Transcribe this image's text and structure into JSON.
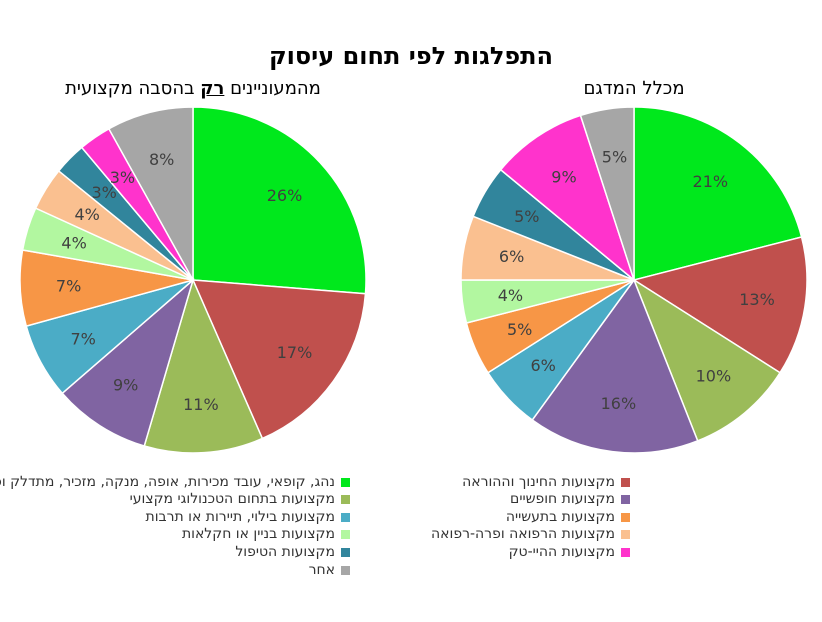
{
  "title": "התפלגות לפי תחום עיסוק",
  "chart_data": [
    {
      "type": "pie",
      "title_prefix": "מהמעוניינים ",
      "title_emphasis": "רק",
      "title_suffix": " בהסבה מקצועית",
      "slices": [
        {
          "label": "נהג, קופאי, עובד מכירות, אופה, מנקה, מזכיר, מתדלק וכו'",
          "value": 26,
          "color": "#00e81c"
        },
        {
          "label": "מקצועות החינוך וההוראה",
          "value": 17,
          "color": "#c0504d"
        },
        {
          "label": "מקצועות בתחום הטכנולוגי מקצועי",
          "value": 11,
          "color": "#9bbb59"
        },
        {
          "label": "מקצועות חופשיים",
          "value": 9,
          "color": "#8064a2"
        },
        {
          "label": "מקצועות בילוי, תיירות או תרבות",
          "value": 7,
          "color": "#4bacc6"
        },
        {
          "label": "מקצועות בתעשייה",
          "value": 7,
          "color": "#f79646"
        },
        {
          "label": "מקצועות בניין או חקלאות",
          "value": 4,
          "color": "#b2f7a0"
        },
        {
          "label": "מקצועות הרפואה ופרה-רפואה",
          "value": 4,
          "color": "#fac090"
        },
        {
          "label": "מקצועות הטיפול",
          "value": 3,
          "color": "#31859c"
        },
        {
          "label": "מקצועות ההיי-טק",
          "value": 3,
          "color": "#ff33cc"
        },
        {
          "label": "אחר",
          "value": 8,
          "color": "#a6a6a6"
        }
      ]
    },
    {
      "type": "pie",
      "title_prefix": "מכלל המדגם",
      "title_emphasis": "",
      "title_suffix": "",
      "slices": [
        {
          "label": "נהג, קופאי, עובד מכירות, אופה, מנקה, מזכיר, מתדלק וכו'",
          "value": 21,
          "color": "#00e81c"
        },
        {
          "label": "מקצועות החינוך וההוראה",
          "value": 13,
          "color": "#c0504d"
        },
        {
          "label": "מקצועות בתחום הטכנולוגי מקצועי",
          "value": 10,
          "color": "#9bbb59"
        },
        {
          "label": "מקצועות חופשיים",
          "value": 16,
          "color": "#8064a2"
        },
        {
          "label": "מקצועות בילוי, תיירות או תרבות",
          "value": 6,
          "color": "#4bacc6"
        },
        {
          "label": "מקצועות בתעשייה",
          "value": 5,
          "color": "#f79646"
        },
        {
          "label": "מקצועות בניין או חקלאות",
          "value": 4,
          "color": "#b2f7a0"
        },
        {
          "label": "מקצועות הרפואה ופרה-רפואה",
          "value": 6,
          "color": "#fac090"
        },
        {
          "label": "מקצועות הטיפול",
          "value": 5,
          "color": "#31859c"
        },
        {
          "label": "מקצועות ההיי-טק",
          "value": 9,
          "color": "#ff33cc"
        },
        {
          "label": "אחר",
          "value": 5,
          "color": "#a6a6a6"
        }
      ]
    }
  ],
  "legend": [
    {
      "label": "נהג, קופאי, עובד מכירות, אופה, מנקה, מזכיר, מתדלק וכו'",
      "color": "#00e81c"
    },
    {
      "label": "מקצועות החינוך וההוראה",
      "color": "#c0504d"
    },
    {
      "label": "מקצועות בתחום הטכנולוגי מקצועי",
      "color": "#9bbb59"
    },
    {
      "label": "מקצועות חופשיים",
      "color": "#8064a2"
    },
    {
      "label": "מקצועות בילוי, תיירות או תרבות",
      "color": "#4bacc6"
    },
    {
      "label": "מקצועות בתעשייה",
      "color": "#f79646"
    },
    {
      "label": "מקצועות בניין או חקלאות",
      "color": "#b2f7a0"
    },
    {
      "label": "מקצועות הרפואה ופרה-רפואה",
      "color": "#fac090"
    },
    {
      "label": "מקצועות הטיפול",
      "color": "#31859c"
    },
    {
      "label": "מקצועות ההיי-טק",
      "color": "#ff33cc"
    },
    {
      "label": "אחר",
      "color": "#a6a6a6"
    }
  ]
}
